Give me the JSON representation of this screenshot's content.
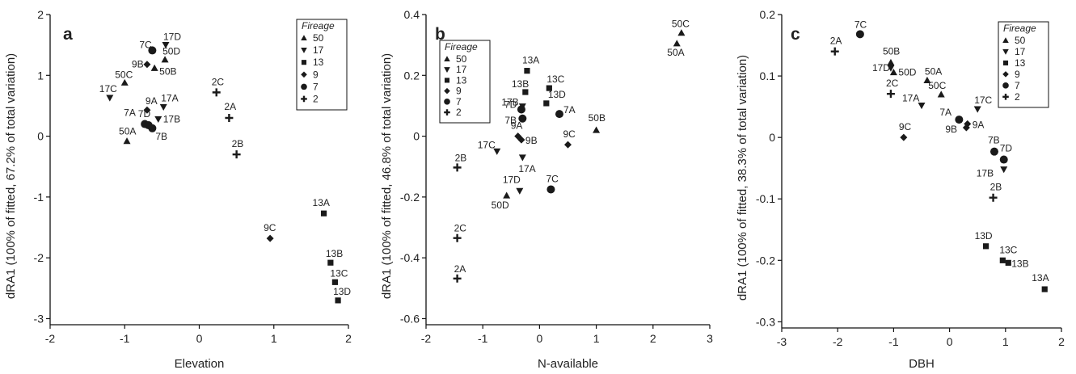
{
  "legend_title": "Fireage",
  "legend_entries": [
    {
      "label": "50",
      "marker": "triangle-up"
    },
    {
      "label": "17",
      "marker": "triangle-down"
    },
    {
      "label": "13",
      "marker": "square"
    },
    {
      "label": "9",
      "marker": "diamond"
    },
    {
      "label": "7",
      "marker": "circle"
    },
    {
      "label": "2",
      "marker": "plus"
    }
  ],
  "chart_data": [
    {
      "type": "scatter",
      "panel": "a",
      "xlabel": "Elevation",
      "ylabel": "dRA1 (100% of fitted, 67.2% of total variation)",
      "xlim": [
        -2,
        2
      ],
      "ylim": [
        -3.1,
        2
      ],
      "xticks": [
        "-2",
        "-1",
        "0",
        "1",
        "2"
      ],
      "yticks": [
        "-3",
        "-2",
        "-1",
        "0",
        "1",
        "2"
      ],
      "xtick_values": [
        -2,
        -1,
        0,
        1,
        2
      ],
      "ytick_values": [
        -3,
        -2,
        -1,
        0,
        1,
        2
      ],
      "legend_position": "top-right",
      "points": [
        {
          "label": "7C",
          "group": "7",
          "x": -0.63,
          "y": 1.41
        },
        {
          "label": "17D",
          "group": "17",
          "x": -0.45,
          "y": 1.5
        },
        {
          "label": "9B",
          "group": "9",
          "x": -0.7,
          "y": 1.18
        },
        {
          "label": "50D",
          "group": "50",
          "x": -0.46,
          "y": 1.26
        },
        {
          "label": "50C",
          "group": "50",
          "x": -1.0,
          "y": 0.88
        },
        {
          "label": "50B",
          "group": "50",
          "x": -0.6,
          "y": 1.12
        },
        {
          "label": "17C",
          "group": "17",
          "x": -1.2,
          "y": 0.63
        },
        {
          "label": "9A",
          "group": "9",
          "x": -0.7,
          "y": 0.43
        },
        {
          "label": "17A",
          "group": "17",
          "x": -0.48,
          "y": 0.48
        },
        {
          "label": "7A",
          "group": "7",
          "x": -0.73,
          "y": 0.2
        },
        {
          "label": "7D",
          "group": "7",
          "x": -0.68,
          "y": 0.18
        },
        {
          "label": "17B",
          "group": "17",
          "x": -0.55,
          "y": 0.28
        },
        {
          "label": "7B",
          "group": "7",
          "x": -0.63,
          "y": 0.13
        },
        {
          "label": "50A",
          "group": "50",
          "x": -0.97,
          "y": -0.08
        },
        {
          "label": "2C",
          "group": "2",
          "x": 0.23,
          "y": 0.72
        },
        {
          "label": "2A",
          "group": "2",
          "x": 0.4,
          "y": 0.3
        },
        {
          "label": "2B",
          "group": "2",
          "x": 0.5,
          "y": -0.3
        },
        {
          "label": "9C",
          "group": "9",
          "x": 0.95,
          "y": -1.68
        },
        {
          "label": "13A",
          "group": "13",
          "x": 1.67,
          "y": -1.27
        },
        {
          "label": "13B",
          "group": "13",
          "x": 1.76,
          "y": -2.08
        },
        {
          "label": "13C",
          "group": "13",
          "x": 1.82,
          "y": -2.4
        },
        {
          "label": "13D",
          "group": "13",
          "x": 1.86,
          "y": -2.7
        }
      ]
    },
    {
      "type": "scatter",
      "panel": "b",
      "xlabel": "N-available",
      "ylabel": "dRA1 (100% of fitted, 46.8% of total variation)",
      "xlim": [
        -2,
        3
      ],
      "ylim": [
        -0.62,
        0.4
      ],
      "xticks": [
        "-2",
        "-1",
        "0",
        "1",
        "2",
        "3"
      ],
      "yticks": [
        "-0.6",
        "-0.4",
        "-0.2",
        "0",
        "0.2",
        "0.4"
      ],
      "xtick_values": [
        -2,
        -1,
        0,
        1,
        2,
        3
      ],
      "ytick_values": [
        -0.6,
        -0.4,
        -0.2,
        0,
        0.2,
        0.4
      ],
      "legend_position": "top-left",
      "points": [
        {
          "label": "50C",
          "group": "50",
          "x": 2.5,
          "y": 0.34
        },
        {
          "label": "50A",
          "group": "50",
          "x": 2.42,
          "y": 0.305
        },
        {
          "label": "13A",
          "group": "13",
          "x": -0.22,
          "y": 0.215
        },
        {
          "label": "13B",
          "group": "13",
          "x": -0.25,
          "y": 0.145
        },
        {
          "label": "13C",
          "group": "13",
          "x": 0.17,
          "y": 0.158
        },
        {
          "label": "17B",
          "group": "17",
          "x": -0.3,
          "y": 0.098
        },
        {
          "label": "13D",
          "group": "13",
          "x": 0.12,
          "y": 0.108
        },
        {
          "label": "7D",
          "group": "7",
          "x": -0.32,
          "y": 0.088
        },
        {
          "label": "7A",
          "group": "7",
          "x": 0.35,
          "y": 0.073
        },
        {
          "label": "7B",
          "group": "7",
          "x": -0.3,
          "y": 0.058
        },
        {
          "label": "50B",
          "group": "50",
          "x": 1.0,
          "y": 0.02
        },
        {
          "label": "9A",
          "group": "9",
          "x": -0.38,
          "y": 0.0
        },
        {
          "label": "17C",
          "group": "17",
          "x": -0.75,
          "y": -0.05
        },
        {
          "label": "9B",
          "group": "9",
          "x": -0.32,
          "y": -0.012
        },
        {
          "label": "9C",
          "group": "9",
          "x": 0.5,
          "y": -0.028
        },
        {
          "label": "2B",
          "group": "2",
          "x": -1.45,
          "y": -0.103
        },
        {
          "label": "17A",
          "group": "17",
          "x": -0.3,
          "y": -0.07
        },
        {
          "label": "17D",
          "group": "17",
          "x": -0.35,
          "y": -0.18
        },
        {
          "label": "50D",
          "group": "50",
          "x": -0.58,
          "y": -0.195
        },
        {
          "label": "7C",
          "group": "7",
          "x": 0.2,
          "y": -0.175
        },
        {
          "label": "2C",
          "group": "2",
          "x": -1.45,
          "y": -0.335
        },
        {
          "label": "2A",
          "group": "2",
          "x": -1.45,
          "y": -0.468
        }
      ]
    },
    {
      "type": "scatter",
      "panel": "c",
      "xlabel": "DBH",
      "ylabel": "dRA1 (100% of fitted, 38.3% of total variation)",
      "xlim": [
        -3,
        2
      ],
      "ylim": [
        -0.31,
        0.2
      ],
      "xticks": [
        "-3",
        "-2",
        "-1",
        "0",
        "1",
        "2"
      ],
      "yticks": [
        "-0.3",
        "-0.2",
        "-0.1",
        "0",
        "0.1",
        "0.2"
      ],
      "xtick_values": [
        -3,
        -2,
        -1,
        0,
        1,
        2
      ],
      "ytick_values": [
        -0.3,
        -0.2,
        -0.1,
        0,
        0.1,
        0.2
      ],
      "legend_position": "top-right",
      "points": [
        {
          "label": "7C",
          "group": "7",
          "x": -1.6,
          "y": 0.168
        },
        {
          "label": "2A",
          "group": "2",
          "x": -2.05,
          "y": 0.14
        },
        {
          "label": "50B",
          "group": "50",
          "x": -1.05,
          "y": 0.122
        },
        {
          "label": "17D",
          "group": "17",
          "x": -1.05,
          "y": 0.113
        },
        {
          "label": "50D",
          "group": "50",
          "x": -1.0,
          "y": 0.106
        },
        {
          "label": "50A",
          "group": "50",
          "x": -0.4,
          "y": 0.093
        },
        {
          "label": "2C",
          "group": "2",
          "x": -1.05,
          "y": 0.071
        },
        {
          "label": "50C",
          "group": "50",
          "x": -0.15,
          "y": 0.07
        },
        {
          "label": "17A",
          "group": "17",
          "x": -0.5,
          "y": 0.052
        },
        {
          "label": "17C",
          "group": "17",
          "x": 0.5,
          "y": 0.046
        },
        {
          "label": "7A",
          "group": "7",
          "x": 0.17,
          "y": 0.029
        },
        {
          "label": "9A",
          "group": "9",
          "x": 0.32,
          "y": 0.022
        },
        {
          "label": "9B",
          "group": "9",
          "x": 0.3,
          "y": 0.016
        },
        {
          "label": "9C",
          "group": "9",
          "x": -0.82,
          "y": 0.0
        },
        {
          "label": "7B",
          "group": "7",
          "x": 0.8,
          "y": -0.023
        },
        {
          "label": "7D",
          "group": "7",
          "x": 0.97,
          "y": -0.036
        },
        {
          "label": "17B",
          "group": "17",
          "x": 0.97,
          "y": -0.052
        },
        {
          "label": "2B",
          "group": "2",
          "x": 0.78,
          "y": -0.098
        },
        {
          "label": "13D",
          "group": "13",
          "x": 0.65,
          "y": -0.177
        },
        {
          "label": "13C",
          "group": "13",
          "x": 0.95,
          "y": -0.2
        },
        {
          "label": "13B",
          "group": "13",
          "x": 1.05,
          "y": -0.204
        },
        {
          "label": "13A",
          "group": "13",
          "x": 1.7,
          "y": -0.247
        }
      ]
    }
  ]
}
